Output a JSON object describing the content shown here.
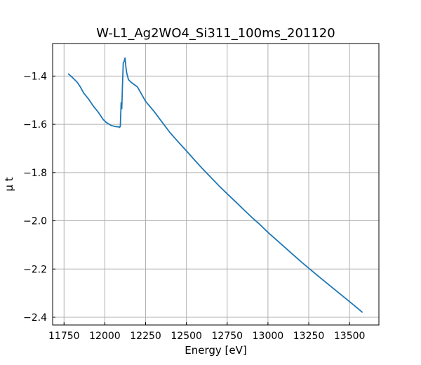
{
  "chart_data": {
    "type": "line",
    "title": "W-L1_Ag2WO4_Si311_100ms_201120",
    "xlabel": "Energy [eV]",
    "ylabel": "μ t",
    "xlim": [
      11680,
      13680
    ],
    "ylim": [
      -2.432,
      -1.265
    ],
    "x_ticks": [
      11750,
      12000,
      12250,
      12500,
      12750,
      13000,
      13250,
      13500
    ],
    "x_tick_labels": [
      "11750",
      "12000",
      "12250",
      "12500",
      "12750",
      "13000",
      "13250",
      "13500"
    ],
    "y_ticks": [
      -1.4,
      -1.6,
      -1.8,
      -2.0,
      -2.2,
      -2.4
    ],
    "y_tick_labels": [
      "−1.4",
      "−1.6",
      "−1.8",
      "−2.0",
      "−2.2",
      "−2.4"
    ],
    "grid": true,
    "legend": "none",
    "series": [
      {
        "color": "#1f77b4",
        "x": [
          11775,
          11800,
          11830,
          11850,
          11870,
          11900,
          11930,
          11960,
          11990,
          12010,
          12040,
          12070,
          12085,
          12090,
          12095,
          12100,
          12104,
          12108,
          12113,
          12118,
          12124,
          12129,
          12135,
          12145,
          12160,
          12200,
          12250,
          12300,
          12350,
          12400,
          12450,
          12500,
          12550,
          12600,
          12650,
          12700,
          12750,
          12800,
          12850,
          12900,
          12950,
          13000,
          13100,
          13200,
          13300,
          13400,
          13500,
          13580
        ],
        "y": [
          -1.39,
          -1.405,
          -1.425,
          -1.445,
          -1.47,
          -1.495,
          -1.525,
          -1.55,
          -1.58,
          -1.593,
          -1.605,
          -1.61,
          -1.61,
          -1.613,
          -1.608,
          -1.51,
          -1.535,
          -1.44,
          -1.345,
          -1.34,
          -1.325,
          -1.362,
          -1.39,
          -1.415,
          -1.425,
          -1.445,
          -1.505,
          -1.545,
          -1.59,
          -1.635,
          -1.673,
          -1.71,
          -1.748,
          -1.785,
          -1.82,
          -1.855,
          -1.888,
          -1.92,
          -1.953,
          -1.985,
          -2.015,
          -2.048,
          -2.108,
          -2.168,
          -2.225,
          -2.28,
          -2.335,
          -2.38
        ]
      }
    ]
  }
}
